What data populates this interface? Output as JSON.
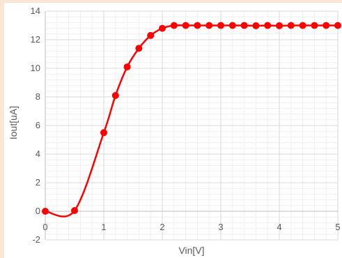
{
  "chart_data": {
    "type": "line",
    "title": "",
    "xlabel": "Vin[V]",
    "ylabel": "Iout[uA]",
    "xlim": [
      0,
      5
    ],
    "ylim": [
      -2,
      14
    ],
    "x_ticks": [
      0,
      1,
      2,
      3,
      4,
      5
    ],
    "y_ticks": [
      -2,
      0,
      2,
      4,
      6,
      8,
      10,
      12,
      14
    ],
    "x_tick_labels": [
      "0",
      "1",
      "2",
      "3",
      "4",
      "5"
    ],
    "y_tick_labels": [
      "-2",
      "0",
      "2",
      "4",
      "6",
      "8",
      "10",
      "12",
      "14"
    ],
    "grid": true,
    "minor_grid": true,
    "legend": "none",
    "series": [
      {
        "color": "#ff0000",
        "smooth": true,
        "x": [
          0,
          0.5,
          1.0,
          1.2,
          1.4,
          1.6,
          1.8,
          2.0,
          2.2,
          2.4,
          2.6,
          2.8,
          3.0,
          3.2,
          3.4,
          3.6,
          3.8,
          4.0,
          4.2,
          4.4,
          4.6,
          4.8,
          5.0
        ],
        "y": [
          0,
          0.05,
          5.5,
          8.1,
          10.1,
          11.4,
          12.3,
          12.8,
          13.0,
          13.0,
          13.0,
          13.0,
          13.0,
          13.0,
          13.0,
          12.98,
          13.0,
          12.98,
          13.0,
          13.0,
          13.0,
          13.0,
          13.0
        ]
      }
    ],
    "colors": {
      "grid_major": "#d9d9d9",
      "grid_minor": "#efefef",
      "axis": "#bfbfbf",
      "text": "#595959"
    }
  }
}
